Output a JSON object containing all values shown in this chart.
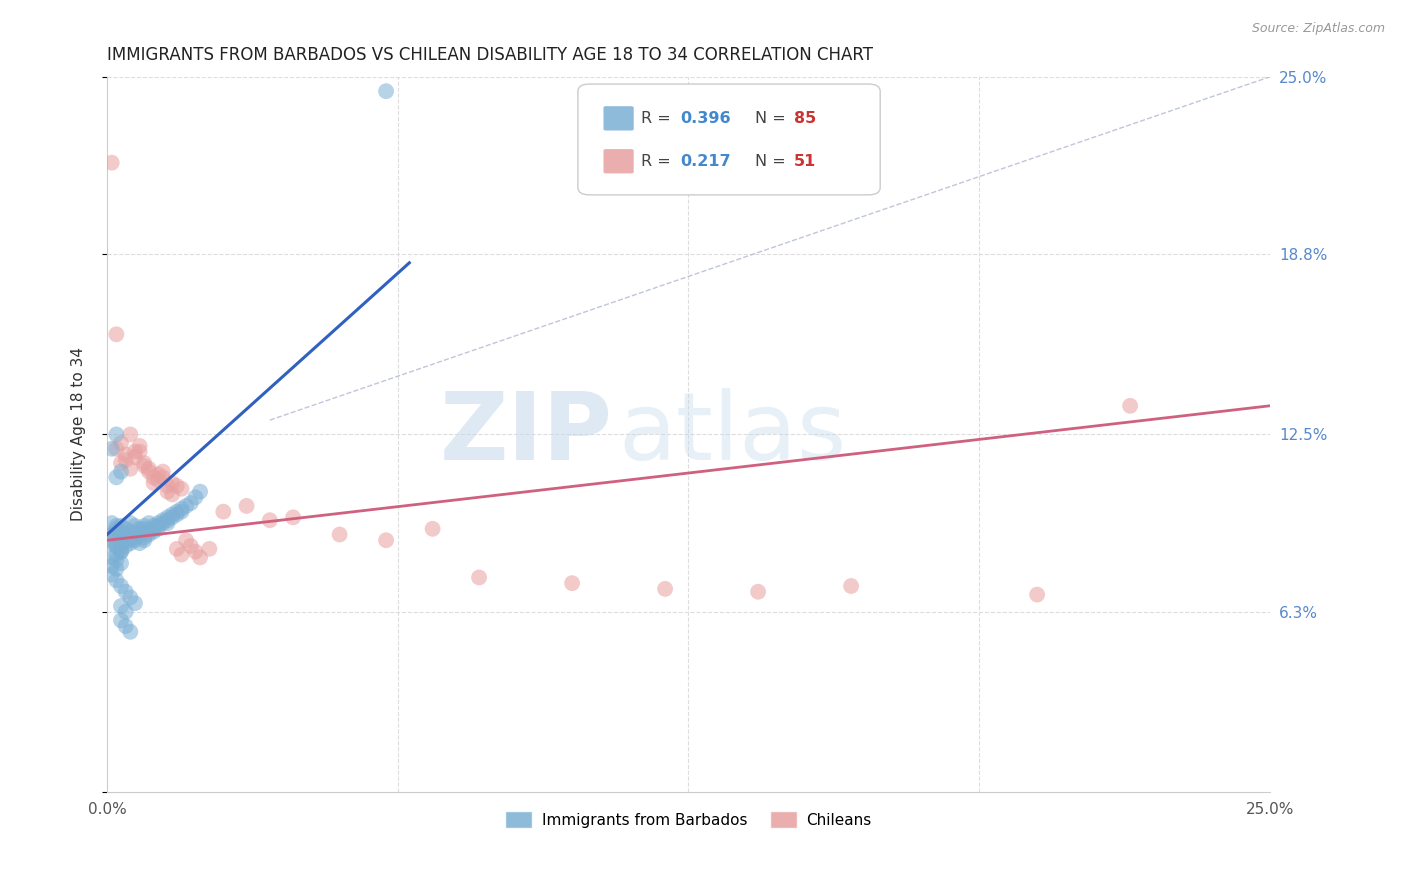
{
  "title": "IMMIGRANTS FROM BARBADOS VS CHILEAN DISABILITY AGE 18 TO 34 CORRELATION CHART",
  "source": "Source: ZipAtlas.com",
  "ylabel": "Disability Age 18 to 34",
  "xlim": [
    0,
    0.25
  ],
  "ylim": [
    0,
    0.25
  ],
  "ytick_labels_right": [
    "25.0%",
    "18.8%",
    "12.5%",
    "6.3%"
  ],
  "ytick_positions_right": [
    0.25,
    0.188,
    0.125,
    0.063
  ],
  "color_blue": "#7bafd4",
  "color_pink": "#e8a0a0",
  "color_blue_line": "#3060c0",
  "color_pink_line": "#d06080",
  "color_diag": "#b0b8d0",
  "watermark_zip": "ZIP",
  "watermark_atlas": "atlas",
  "blue_line_x": [
    0.0,
    0.065
  ],
  "blue_line_y": [
    0.09,
    0.185
  ],
  "pink_line_x": [
    0.0,
    0.25
  ],
  "pink_line_y": [
    0.088,
    0.135
  ],
  "diag_line_x": [
    0.035,
    0.25
  ],
  "diag_line_y": [
    0.13,
    0.25
  ],
  "barbados_x": [
    0.001,
    0.002,
    0.001,
    0.003,
    0.002,
    0.001,
    0.003,
    0.004,
    0.002,
    0.001,
    0.003,
    0.002,
    0.001,
    0.004,
    0.003,
    0.002,
    0.001,
    0.003,
    0.002,
    0.001,
    0.004,
    0.003,
    0.002,
    0.005,
    0.004,
    0.003,
    0.002,
    0.006,
    0.005,
    0.004,
    0.003,
    0.007,
    0.006,
    0.005,
    0.004,
    0.003,
    0.008,
    0.007,
    0.006,
    0.005,
    0.009,
    0.008,
    0.007,
    0.006,
    0.01,
    0.009,
    0.008,
    0.007,
    0.011,
    0.01,
    0.009,
    0.008,
    0.012,
    0.011,
    0.01,
    0.013,
    0.012,
    0.011,
    0.014,
    0.013,
    0.015,
    0.014,
    0.013,
    0.016,
    0.015,
    0.017,
    0.016,
    0.018,
    0.019,
    0.02,
    0.002,
    0.003,
    0.004,
    0.005,
    0.006,
    0.003,
    0.004,
    0.003,
    0.004,
    0.005,
    0.002,
    0.003,
    0.001,
    0.002,
    0.06
  ],
  "barbados_y": [
    0.09,
    0.092,
    0.088,
    0.091,
    0.093,
    0.094,
    0.089,
    0.09,
    0.086,
    0.087,
    0.085,
    0.083,
    0.082,
    0.088,
    0.084,
    0.081,
    0.079,
    0.08,
    0.078,
    0.076,
    0.092,
    0.093,
    0.091,
    0.094,
    0.09,
    0.088,
    0.086,
    0.093,
    0.091,
    0.089,
    0.087,
    0.092,
    0.09,
    0.088,
    0.086,
    0.084,
    0.093,
    0.091,
    0.089,
    0.087,
    0.094,
    0.092,
    0.09,
    0.088,
    0.093,
    0.091,
    0.089,
    0.087,
    0.094,
    0.092,
    0.09,
    0.088,
    0.095,
    0.093,
    0.091,
    0.096,
    0.094,
    0.092,
    0.097,
    0.095,
    0.098,
    0.096,
    0.094,
    0.099,
    0.097,
    0.1,
    0.098,
    0.101,
    0.103,
    0.105,
    0.074,
    0.072,
    0.07,
    0.068,
    0.066,
    0.065,
    0.063,
    0.06,
    0.058,
    0.056,
    0.11,
    0.112,
    0.12,
    0.125,
    0.245
  ],
  "chilean_x": [
    0.001,
    0.002,
    0.001,
    0.003,
    0.002,
    0.004,
    0.003,
    0.005,
    0.004,
    0.006,
    0.005,
    0.007,
    0.006,
    0.008,
    0.007,
    0.009,
    0.008,
    0.01,
    0.009,
    0.011,
    0.01,
    0.012,
    0.011,
    0.013,
    0.012,
    0.014,
    0.013,
    0.015,
    0.014,
    0.016,
    0.015,
    0.017,
    0.016,
    0.018,
    0.019,
    0.02,
    0.022,
    0.025,
    0.03,
    0.035,
    0.04,
    0.05,
    0.06,
    0.07,
    0.08,
    0.1,
    0.12,
    0.14,
    0.16,
    0.2,
    0.22
  ],
  "chilean_y": [
    0.09,
    0.12,
    0.22,
    0.115,
    0.16,
    0.118,
    0.122,
    0.125,
    0.116,
    0.119,
    0.113,
    0.121,
    0.117,
    0.114,
    0.119,
    0.112,
    0.115,
    0.11,
    0.113,
    0.111,
    0.108,
    0.112,
    0.109,
    0.107,
    0.11,
    0.108,
    0.105,
    0.107,
    0.104,
    0.106,
    0.085,
    0.088,
    0.083,
    0.086,
    0.084,
    0.082,
    0.085,
    0.098,
    0.1,
    0.095,
    0.096,
    0.09,
    0.088,
    0.092,
    0.075,
    0.073,
    0.071,
    0.07,
    0.072,
    0.069,
    0.135
  ]
}
